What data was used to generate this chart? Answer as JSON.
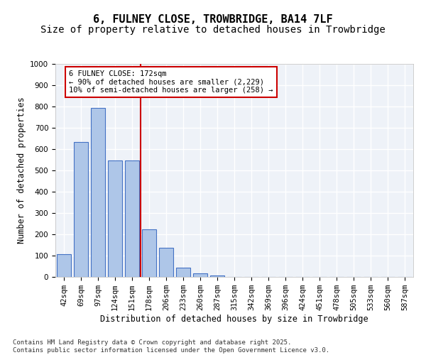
{
  "title1": "6, FULNEY CLOSE, TROWBRIDGE, BA14 7LF",
  "title2": "Size of property relative to detached houses in Trowbridge",
  "xlabel": "Distribution of detached houses by size in Trowbridge",
  "ylabel": "Number of detached properties",
  "bar_labels": [
    "42sqm",
    "69sqm",
    "97sqm",
    "124sqm",
    "151sqm",
    "178sqm",
    "206sqm",
    "233sqm",
    "260sqm",
    "287sqm",
    "315sqm",
    "342sqm",
    "369sqm",
    "396sqm",
    "424sqm",
    "451sqm",
    "478sqm",
    "505sqm",
    "533sqm",
    "560sqm",
    "587sqm"
  ],
  "bar_values": [
    107,
    632,
    793,
    547,
    547,
    222,
    137,
    42,
    17,
    8,
    0,
    0,
    0,
    0,
    0,
    0,
    0,
    0,
    0,
    0,
    0
  ],
  "bar_color": "#aec6e8",
  "bar_edge_color": "#4472c4",
  "vline_color": "#cc0000",
  "annotation_text": "6 FULNEY CLOSE: 172sqm\n← 90% of detached houses are smaller (2,229)\n10% of semi-detached houses are larger (258) →",
  "annotation_box_color": "#cc0000",
  "ylim": [
    0,
    1000
  ],
  "yticks": [
    0,
    100,
    200,
    300,
    400,
    500,
    600,
    700,
    800,
    900,
    1000
  ],
  "background_color": "#eef2f8",
  "footer": "Contains HM Land Registry data © Crown copyright and database right 2025.\nContains public sector information licensed under the Open Government Licence v3.0.",
  "grid_color": "#ffffff",
  "title_fontsize": 11,
  "subtitle_fontsize": 10,
  "axis_label_fontsize": 8.5,
  "tick_fontsize": 7.5
}
